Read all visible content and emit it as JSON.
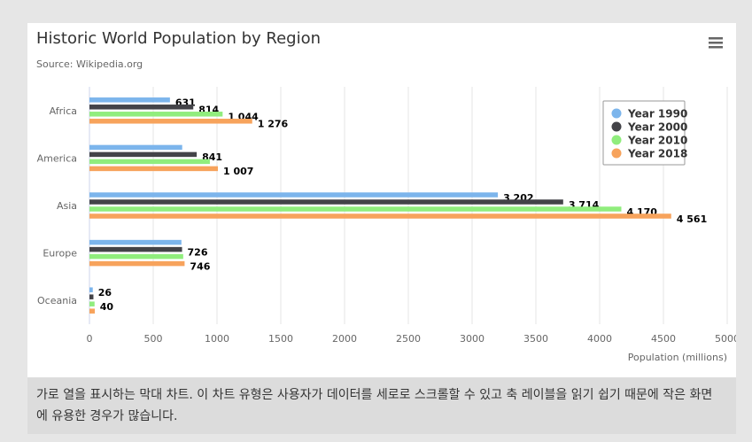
{
  "chart": {
    "title": "Historic World Population by Region",
    "subtitle": "Source: Wikipedia.org",
    "menu_icon": "hamburger-menu-icon"
  },
  "caption": "가로 열을 표시하는 막대 차트. 이 차트 유형은 사용자가 데이터를 세로로 스크롤할 수 있고 축 레이블을 읽기 쉽기 때문에 작은 화면에 유용한 경우가 많습니다.",
  "chart_data": {
    "type": "bar",
    "orientation": "horizontal",
    "title": "Historic World Population by Region",
    "subtitle": "Source: Wikipedia.org",
    "categories": [
      "Africa",
      "America",
      "Asia",
      "Europe",
      "Oceania"
    ],
    "series": [
      {
        "name": "Year 1990",
        "color": "#7cb5ec",
        "values": [
          631,
          727,
          3202,
          721,
          26
        ],
        "labels": [
          "631",
          "",
          "3 202",
          "",
          "26"
        ]
      },
      {
        "name": "Year 2000",
        "color": "#434348",
        "values": [
          814,
          841,
          3714,
          726,
          31
        ],
        "labels": [
          "814",
          "841",
          "3 714",
          "726",
          ""
        ]
      },
      {
        "name": "Year 2010",
        "color": "#90ed7d",
        "values": [
          1044,
          944,
          4170,
          735,
          40
        ],
        "labels": [
          "1 044",
          "",
          "4 170",
          "",
          "40"
        ]
      },
      {
        "name": "Year 2018",
        "color": "#f7a35c",
        "values": [
          1276,
          1007,
          4561,
          746,
          42
        ],
        "labels": [
          "1 276",
          "1 007",
          "4 561",
          "746",
          ""
        ]
      }
    ],
    "xlabel": "Population (millions)",
    "ylabel": "",
    "xlim": [
      0,
      5000
    ],
    "ticks": [
      "0",
      "500",
      "1000",
      "1500",
      "2000",
      "2500",
      "3000",
      "3500",
      "4000",
      "4500",
      "5000"
    ],
    "grid": true,
    "legend_position": "right"
  }
}
